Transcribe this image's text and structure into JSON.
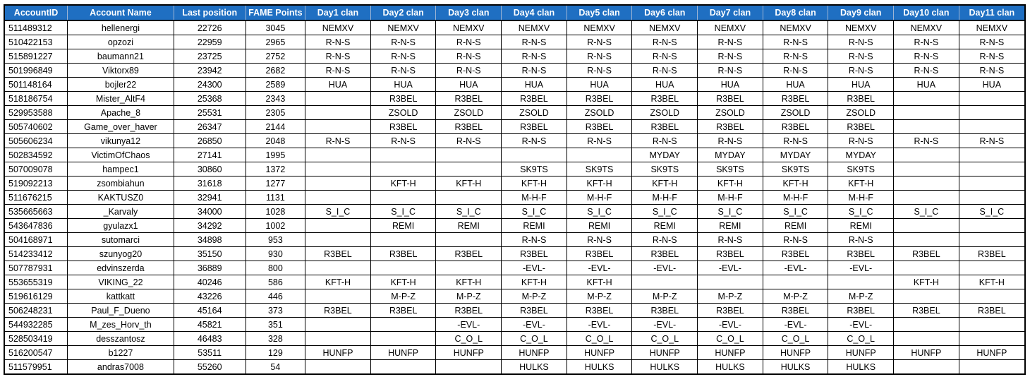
{
  "columns": [
    "AccountID",
    "Account Name",
    "Last position",
    "FAME Points",
    "Day1 clan",
    "Day2 clan",
    "Day3 clan",
    "Day4 clan",
    "Day5 clan",
    "Day6 clan",
    "Day7 clan",
    "Day8 clan",
    "Day9 clan",
    "Day10 clan",
    "Day11 clan"
  ],
  "header_color": "#1f6fc2",
  "rows": [
    [
      "511489312",
      "hellenergi",
      "22726",
      "3045",
      "NEMXV",
      "NEMXV",
      "NEMXV",
      "NEMXV",
      "NEMXV",
      "NEMXV",
      "NEMXV",
      "NEMXV",
      "NEMXV",
      "NEMXV",
      "NEMXV"
    ],
    [
      "510422153",
      "opzozi",
      "22959",
      "2965",
      "R-N-S",
      "R-N-S",
      "R-N-S",
      "R-N-S",
      "R-N-S",
      "R-N-S",
      "R-N-S",
      "R-N-S",
      "R-N-S",
      "R-N-S",
      "R-N-S"
    ],
    [
      "515891227",
      "baumann21",
      "23725",
      "2752",
      "R-N-S",
      "R-N-S",
      "R-N-S",
      "R-N-S",
      "R-N-S",
      "R-N-S",
      "R-N-S",
      "R-N-S",
      "R-N-S",
      "R-N-S",
      "R-N-S"
    ],
    [
      "501996849",
      "Viktorx89",
      "23942",
      "2682",
      "R-N-S",
      "R-N-S",
      "R-N-S",
      "R-N-S",
      "R-N-S",
      "R-N-S",
      "R-N-S",
      "R-N-S",
      "R-N-S",
      "R-N-S",
      "R-N-S"
    ],
    [
      "501148164",
      "bojler22",
      "24300",
      "2589",
      "HUA",
      "HUA",
      "HUA",
      "HUA",
      "HUA",
      "HUA",
      "HUA",
      "HUA",
      "HUA",
      "HUA",
      "HUA"
    ],
    [
      "518186754",
      "Mister_AltF4",
      "25368",
      "2343",
      "",
      "R3BEL",
      "R3BEL",
      "R3BEL",
      "R3BEL",
      "R3BEL",
      "R3BEL",
      "R3BEL",
      "R3BEL",
      "",
      ""
    ],
    [
      "529953588",
      "Apache_8",
      "25531",
      "2305",
      "",
      "ZSOLD",
      "ZSOLD",
      "ZSOLD",
      "ZSOLD",
      "ZSOLD",
      "ZSOLD",
      "ZSOLD",
      "ZSOLD",
      "",
      ""
    ],
    [
      "505740602",
      "Game_over_haver",
      "26347",
      "2144",
      "",
      "R3BEL",
      "R3BEL",
      "R3BEL",
      "R3BEL",
      "R3BEL",
      "R3BEL",
      "R3BEL",
      "R3BEL",
      "",
      ""
    ],
    [
      "505606234",
      "vikunya12",
      "26850",
      "2048",
      "R-N-S",
      "R-N-S",
      "R-N-S",
      "R-N-S",
      "R-N-S",
      "R-N-S",
      "R-N-S",
      "R-N-S",
      "R-N-S",
      "R-N-S",
      "R-N-S"
    ],
    [
      "502834592",
      "VictimOfChaos",
      "27141",
      "1995",
      "",
      "",
      "",
      "",
      "",
      "MYDAY",
      "MYDAY",
      "MYDAY",
      "MYDAY",
      "",
      ""
    ],
    [
      "507009078",
      "hampec1",
      "30860",
      "1372",
      "",
      "",
      "",
      "SK9TS",
      "SK9TS",
      "SK9TS",
      "SK9TS",
      "SK9TS",
      "SK9TS",
      "",
      ""
    ],
    [
      "519092213",
      "zsombiahun",
      "31618",
      "1277",
      "",
      "KFT-H",
      "KFT-H",
      "KFT-H",
      "KFT-H",
      "KFT-H",
      "KFT-H",
      "KFT-H",
      "KFT-H",
      "",
      ""
    ],
    [
      "511676215",
      "KAKTUSZ0",
      "32941",
      "1131",
      "",
      "",
      "",
      "M-H-F",
      "M-H-F",
      "M-H-F",
      "M-H-F",
      "M-H-F",
      "M-H-F",
      "",
      ""
    ],
    [
      "535665663",
      "_Karvaly",
      "34000",
      "1028",
      "S_I_C",
      "S_I_C",
      "S_I_C",
      "S_I_C",
      "S_I_C",
      "S_I_C",
      "S_I_C",
      "S_I_C",
      "S_I_C",
      "S_I_C",
      "S_I_C"
    ],
    [
      "543647836",
      "gyulazx1",
      "34292",
      "1002",
      "",
      "REMI",
      "REMI",
      "REMI",
      "REMI",
      "REMI",
      "REMI",
      "REMI",
      "REMI",
      "",
      ""
    ],
    [
      "504168971",
      "sutomarci",
      "34898",
      "953",
      "",
      "",
      "",
      "R-N-S",
      "R-N-S",
      "R-N-S",
      "R-N-S",
      "R-N-S",
      "R-N-S",
      "",
      ""
    ],
    [
      "514233412",
      "szunyog20",
      "35150",
      "930",
      "R3BEL",
      "R3BEL",
      "R3BEL",
      "R3BEL",
      "R3BEL",
      "R3BEL",
      "R3BEL",
      "R3BEL",
      "R3BEL",
      "R3BEL",
      "R3BEL"
    ],
    [
      "507787931",
      "edvinszerda",
      "36889",
      "800",
      "",
      "",
      "",
      "-EVL-",
      "-EVL-",
      "-EVL-",
      "-EVL-",
      "-EVL-",
      "-EVL-",
      "",
      ""
    ],
    [
      "553655319",
      "VIKING_22",
      "40246",
      "586",
      "KFT-H",
      "KFT-H",
      "KFT-H",
      "KFT-H",
      "KFT-H",
      "",
      "",
      "",
      "",
      "KFT-H",
      "KFT-H"
    ],
    [
      "519616129",
      "kattkatt",
      "43226",
      "446",
      "",
      "M-P-Z",
      "M-P-Z",
      "M-P-Z",
      "M-P-Z",
      "M-P-Z",
      "M-P-Z",
      "M-P-Z",
      "M-P-Z",
      "",
      ""
    ],
    [
      "506248231",
      "Paul_F_Dueno",
      "45164",
      "373",
      "R3BEL",
      "R3BEL",
      "R3BEL",
      "R3BEL",
      "R3BEL",
      "R3BEL",
      "R3BEL",
      "R3BEL",
      "R3BEL",
      "R3BEL",
      "R3BEL"
    ],
    [
      "544932285",
      "M_zes_Horv_th",
      "45821",
      "351",
      "",
      "",
      "-EVL-",
      "-EVL-",
      "-EVL-",
      "-EVL-",
      "-EVL-",
      "-EVL-",
      "-EVL-",
      "",
      ""
    ],
    [
      "528503419",
      "desszantosz",
      "46483",
      "328",
      "",
      "",
      "C_O_L",
      "C_O_L",
      "C_O_L",
      "C_O_L",
      "C_O_L",
      "C_O_L",
      "C_O_L",
      "",
      ""
    ],
    [
      "516200547",
      "b1227",
      "53511",
      "129",
      "HUNFP",
      "HUNFP",
      "HUNFP",
      "HUNFP",
      "HUNFP",
      "HUNFP",
      "HUNFP",
      "HUNFP",
      "HUNFP",
      "HUNFP",
      "HUNFP"
    ],
    [
      "511579951",
      "andras7008",
      "55260",
      "54",
      "",
      "",
      "",
      "HULKS",
      "HULKS",
      "HULKS",
      "HULKS",
      "HULKS",
      "HULKS",
      "",
      ""
    ]
  ]
}
